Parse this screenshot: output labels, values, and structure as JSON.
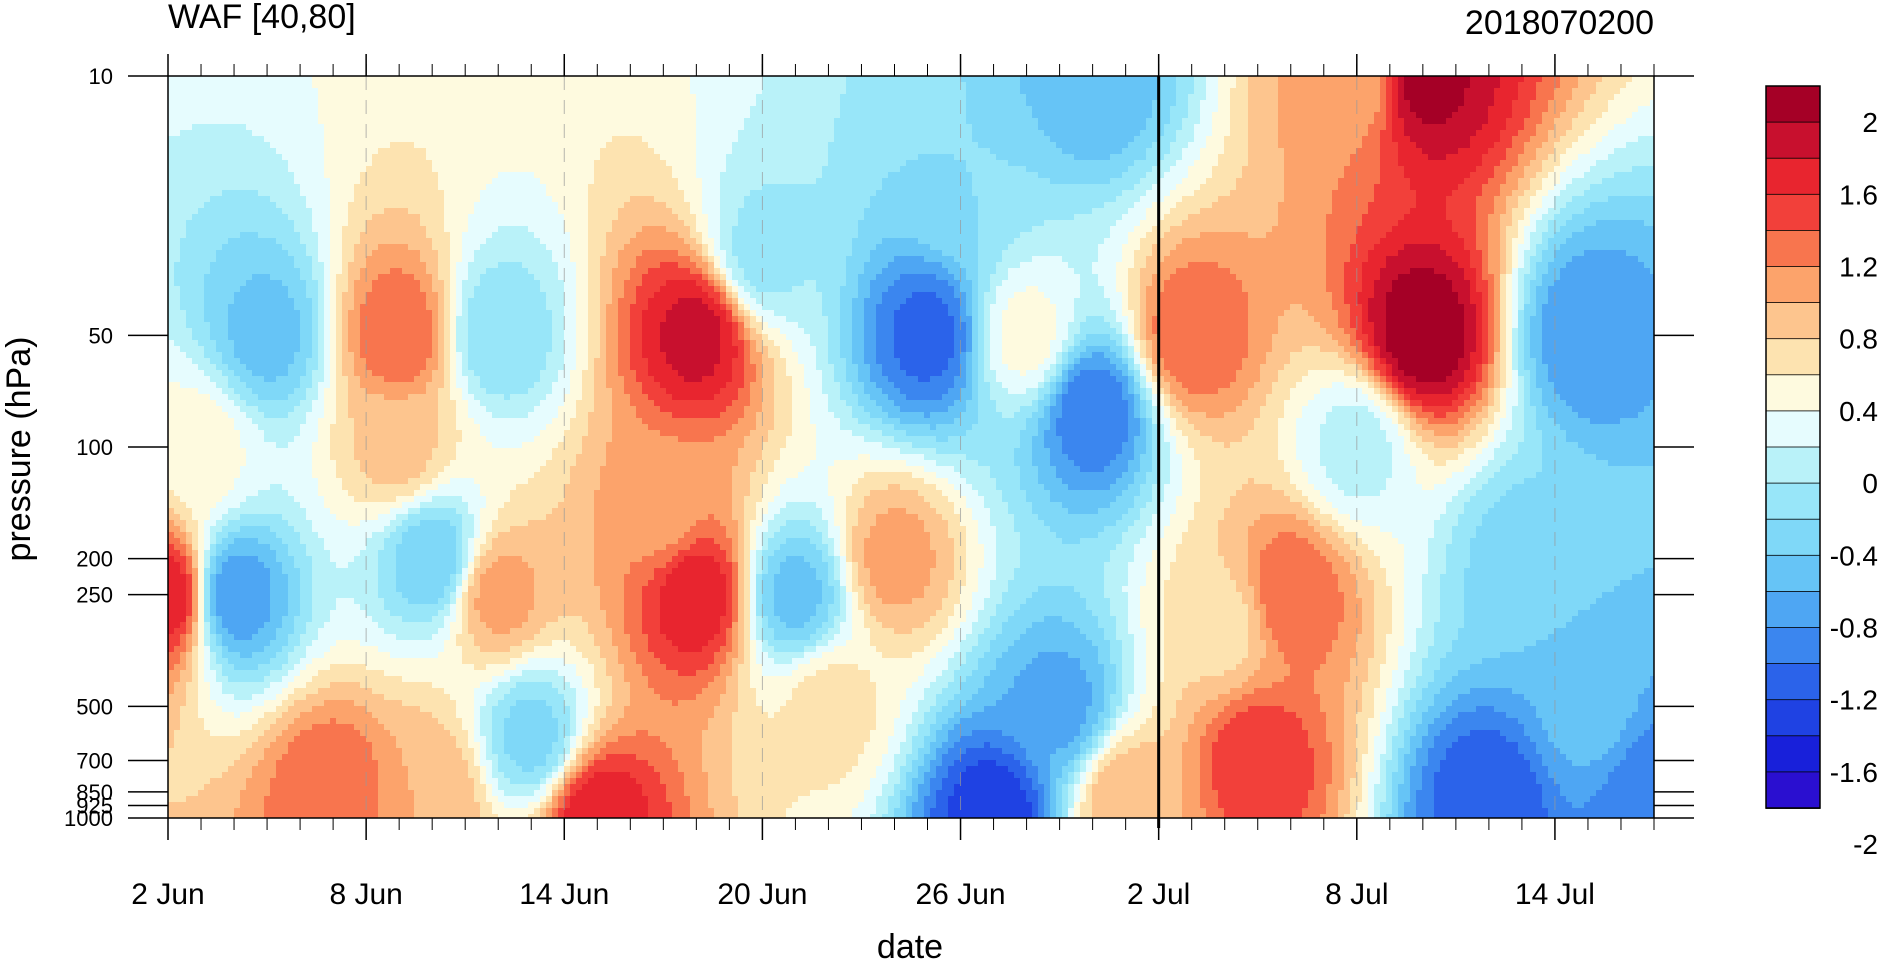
{
  "chart_data": {
    "type": "heatmap",
    "title_left": "WAF [40,80]",
    "title_right": "2018070200",
    "xlabel": "date",
    "ylabel": "pressure (hPa)",
    "x_tick_labels": [
      "2 Jun",
      "8 Jun",
      "14 Jun",
      "20 Jun",
      "26 Jun",
      "2 Jul",
      "8 Jul",
      "14 Jul"
    ],
    "x_range": [
      "2 Jun",
      "17 Jul"
    ],
    "y_tick_labels": [
      "10",
      "50",
      "100",
      "200",
      "250",
      "500",
      "700",
      "850",
      "925",
      "1000"
    ],
    "y_range": [
      1000,
      10
    ],
    "y_scale": "log",
    "vertical_marker_at": "2 Jul",
    "colorbar": {
      "tick_labels": [
        "2",
        "1.6",
        "1.2",
        "0.8",
        "0.4",
        "0",
        "-0.4",
        "-0.8",
        "-1.2",
        "-1.6",
        "-2"
      ],
      "levels": [
        -2.2,
        -2.0,
        -1.8,
        -1.6,
        -1.4,
        -1.2,
        -1.0,
        -0.8,
        -0.6,
        -0.4,
        -0.2,
        0,
        0.2,
        0.4,
        0.6,
        0.8,
        1.0,
        1.2,
        1.4,
        1.6,
        1.8,
        2.0,
        2.2
      ],
      "colors": [
        "#a50026",
        "#c8102e",
        "#e8252f",
        "#f2403a",
        "#f8754e",
        "#fca36b",
        "#fdc58e",
        "#fde3b0",
        "#fefadf",
        "#e6fcfe",
        "#b9f2f9",
        "#98e6f9",
        "#7fd8f8",
        "#66c4f6",
        "#4ea6f3",
        "#3b86ef",
        "#2b63ea",
        "#1f42e3",
        "#1820da",
        "#2a0fd0"
      ]
    },
    "grid": false,
    "legend": "colorbar-right",
    "centers": [
      {
        "date": "3 Jun",
        "p": 100,
        "v": 0.1
      },
      {
        "date": "2 Jun",
        "p": 250,
        "v": 1.4
      },
      {
        "date": "4 Jun",
        "p": 250,
        "v": -1.2
      },
      {
        "date": "5 Jun",
        "p": 50,
        "v": -0.9
      },
      {
        "date": "7 Jun",
        "p": 850,
        "v": 1.0
      },
      {
        "date": "9 Jun",
        "p": 50,
        "v": 1.0
      },
      {
        "date": "9 Jun",
        "p": 100,
        "v": 0.5
      },
      {
        "date": "10 Jun",
        "p": 200,
        "v": -0.8
      },
      {
        "date": "12 Jun",
        "p": 250,
        "v": 0.7
      },
      {
        "date": "10 Jun",
        "p": 850,
        "v": 0.6
      },
      {
        "date": "13 Jun",
        "p": 600,
        "v": -0.7
      },
      {
        "date": "12 Jun",
        "p": 50,
        "v": -0.6
      },
      {
        "date": "15 Jun",
        "p": 1000,
        "v": 1.4
      },
      {
        "date": "18 Jun",
        "p": 50,
        "v": 1.5
      },
      {
        "date": "18 Jun",
        "p": 250,
        "v": 1.4
      },
      {
        "date": "17 Jun",
        "p": 150,
        "v": 0.7
      },
      {
        "date": "21 Jun",
        "p": 250,
        "v": -0.9
      },
      {
        "date": "20 Jun",
        "p": 30,
        "v": -0.5
      },
      {
        "date": "24 Jun",
        "p": 200,
        "v": 0.7
      },
      {
        "date": "22 Jun",
        "p": 500,
        "v": 0.3
      },
      {
        "date": "25 Jun",
        "p": 50,
        "v": -1.5
      },
      {
        "date": "26 Jun",
        "p": 20,
        "v": -0.6
      },
      {
        "date": "28 Jun",
        "p": 50,
        "v": 0.1
      },
      {
        "date": "29 Jun",
        "p": 500,
        "v": -1.1
      },
      {
        "date": "27 Jun",
        "p": 1000,
        "v": -1.8
      },
      {
        "date": "30 Jun",
        "p": 80,
        "v": -1.4
      },
      {
        "date": "30 Jun",
        "p": 10,
        "v": -1.0
      },
      {
        "date": "1 Jul",
        "p": 900,
        "v": 0.6
      },
      {
        "date": "3 Jul",
        "p": 50,
        "v": 1.0
      },
      {
        "date": "4 Jul",
        "p": 300,
        "v": 0.3
      },
      {
        "date": "5 Jul",
        "p": 700,
        "v": 1.2
      },
      {
        "date": "6 Jul",
        "p": 250,
        "v": 1.0
      },
      {
        "date": "10 Jul",
        "p": 50,
        "v": 1.8
      },
      {
        "date": "10 Jul",
        "p": 10,
        "v": 1.7
      },
      {
        "date": "8 Jul",
        "p": 10,
        "v": 0.6
      },
      {
        "date": "13 Jul",
        "p": 200,
        "v": -0.7
      },
      {
        "date": "15 Jul",
        "p": 50,
        "v": -1.2
      },
      {
        "date": "12 Jul",
        "p": 900,
        "v": -1.6
      },
      {
        "date": "17 Jul",
        "p": 900,
        "v": -1.4
      },
      {
        "date": "15 Jul",
        "p": 500,
        "v": -0.9
      },
      {
        "date": "8 Jul",
        "p": 100,
        "v": -0.3
      }
    ]
  }
}
